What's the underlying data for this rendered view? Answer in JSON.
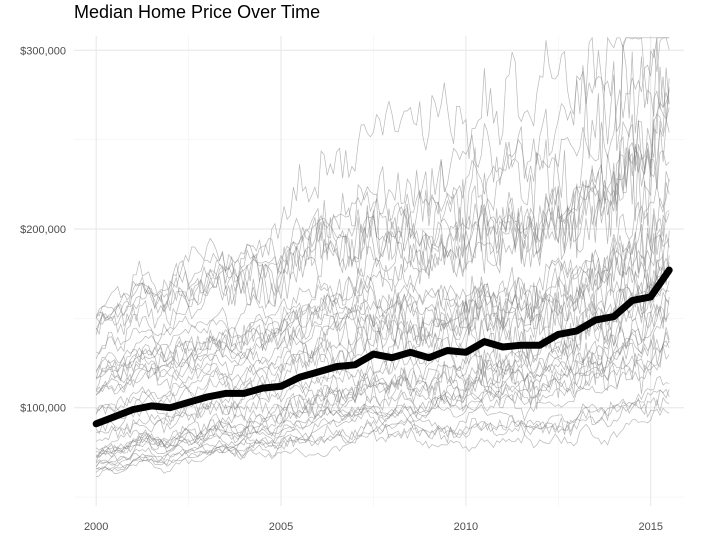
{
  "chart_data": {
    "type": "line",
    "title": "Median Home Price Over Time",
    "xlabel": "",
    "ylabel": "",
    "x_ticks": [
      "2000",
      "2005",
      "2010",
      "2015"
    ],
    "y_ticks": [
      "$100,000",
      "$200,000",
      "$300,000"
    ],
    "xlim": [
      1999.4,
      2015.9
    ],
    "ylim": [
      45000,
      308000
    ],
    "grid": true,
    "legend": "none",
    "series": [
      {
        "emphasis": "bold",
        "color": "#000000",
        "x": [
          2000.0,
          2000.5,
          2001.0,
          2001.5,
          2002.0,
          2002.5,
          2003.0,
          2003.5,
          2004.0,
          2004.5,
          2005.0,
          2005.5,
          2006.0,
          2006.5,
          2007.0,
          2007.5,
          2008.0,
          2008.5,
          2009.0,
          2009.5,
          2010.0,
          2010.5,
          2011.0,
          2011.5,
          2012.0,
          2012.5,
          2013.0,
          2013.5,
          2014.0,
          2014.5,
          2015.0,
          2015.5
        ],
        "values": [
          91000,
          95000,
          99000,
          101000,
          100000,
          103000,
          106000,
          108000,
          108000,
          111000,
          112000,
          117000,
          120000,
          123000,
          124000,
          130000,
          128000,
          131000,
          128000,
          132000,
          131000,
          137000,
          134000,
          135000,
          135000,
          141000,
          143000,
          149000,
          151000,
          160000,
          162000,
          177000
        ]
      }
    ],
    "background_series_count": 40,
    "background_color": "#808080"
  }
}
